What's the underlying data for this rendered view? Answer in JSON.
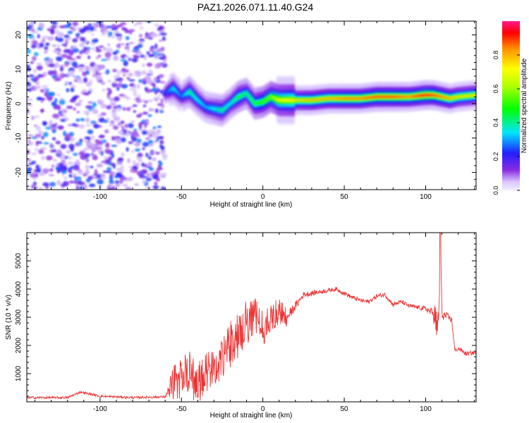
{
  "title": "PAZ1.2026.071.11.40.G24",
  "colors": {
    "line": "#ee3333",
    "spectral_low": "#d9c7ff",
    "spectral_high": "#ff0033"
  },
  "chart_data": [
    {
      "type": "heatmap",
      "name": "spectrogram",
      "xlabel": "Height of straight line (km)",
      "ylabel": "Frequency (Hz)",
      "xlim": [
        -145,
        131
      ],
      "ylim": [
        -25,
        24
      ],
      "x_ticks": [
        -100,
        -50,
        0,
        50,
        100
      ],
      "y_ticks": [
        -20,
        -10,
        0,
        10,
        20
      ],
      "colorbar": {
        "label": "Normalized spectral amplitude",
        "range": [
          0,
          1
        ],
        "ticks": [
          "0.0",
          "0.2",
          "0.4",
          "0.6",
          "0.8"
        ]
      },
      "noise_region": {
        "x_range": [
          -145,
          -60
        ],
        "y_range": [
          -25,
          24
        ],
        "amplitude": [
          0.05,
          0.3
        ]
      },
      "ridge": {
        "x": [
          -60,
          -55,
          -50,
          -45,
          -40,
          -35,
          -30,
          -25,
          -20,
          -15,
          -10,
          -5,
          0,
          5,
          10,
          20,
          30,
          40,
          50,
          60,
          70,
          80,
          90,
          100,
          105,
          110,
          115,
          120,
          131
        ],
        "freq": [
          3,
          4.5,
          2,
          3.5,
          1,
          -1,
          -1.5,
          -2,
          0,
          2,
          3,
          0,
          0.5,
          2,
          1,
          1,
          1,
          1.5,
          1.5,
          1.5,
          2,
          2,
          2,
          2.5,
          2.5,
          2,
          1.5,
          2,
          2.5
        ],
        "amplitude": [
          0.2,
          0.35,
          0.25,
          0.4,
          0.35,
          0.3,
          0.35,
          0.4,
          0.35,
          0.45,
          0.4,
          0.45,
          0.5,
          0.55,
          0.7,
          0.75,
          0.8,
          0.8,
          0.85,
          0.85,
          0.9,
          0.9,
          0.85,
          0.95,
          0.9,
          0.85,
          0.8,
          0.75,
          0.75
        ]
      }
    },
    {
      "type": "line",
      "name": "snr",
      "xlabel": "Height of straight line (km)",
      "ylabel": "SNR (10 * v/v)",
      "xlim": [
        -145,
        131
      ],
      "ylim": [
        0,
        6000
      ],
      "x_ticks": [
        -100,
        -50,
        0,
        50,
        100
      ],
      "y_ticks": [
        1000,
        2000,
        3000,
        4000,
        5000
      ],
      "series": [
        {
          "name": "SNR",
          "x": [
            -145,
            -120,
            -112,
            -100,
            -80,
            -60,
            -55,
            -50,
            -45,
            -40,
            -35,
            -30,
            -25,
            -20,
            -15,
            -10,
            -5,
            0,
            5,
            10,
            15,
            20,
            25,
            30,
            35,
            40,
            45,
            50,
            55,
            60,
            65,
            70,
            75,
            80,
            85,
            90,
            95,
            100,
            103,
            106,
            108,
            109,
            110,
            112,
            114,
            116,
            118,
            120,
            125,
            131
          ],
          "y": [
            150,
            150,
            350,
            200,
            150,
            180,
            700,
            800,
            1100,
            600,
            1000,
            1300,
            1600,
            2000,
            2400,
            2800,
            3000,
            2600,
            3000,
            3200,
            3000,
            3400,
            3800,
            3850,
            3900,
            3950,
            4000,
            3850,
            3700,
            3600,
            3550,
            3750,
            3800,
            3450,
            3550,
            3400,
            3350,
            3300,
            3200,
            3050,
            2400,
            6100,
            3100,
            3050,
            3000,
            2900,
            1800,
            1900,
            1700,
            1750
          ],
          "jitter": [
            80,
            80,
            80,
            80,
            80,
            80,
            700,
            800,
            900,
            900,
            850,
            800,
            900,
            1000,
            1000,
            900,
            800,
            700,
            600,
            500,
            400,
            300,
            200,
            200,
            150,
            150,
            150,
            150,
            150,
            150,
            150,
            150,
            150,
            150,
            150,
            150,
            150,
            200,
            300,
            500,
            1200,
            0,
            400,
            300,
            250,
            200,
            150,
            150,
            150,
            150
          ]
        }
      ]
    }
  ]
}
